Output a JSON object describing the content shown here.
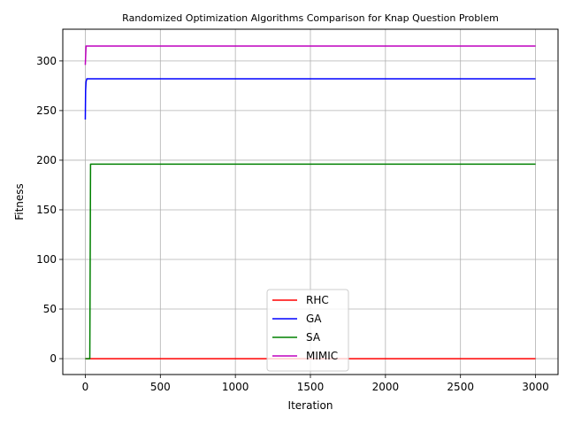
{
  "chart_data": {
    "type": "line",
    "title": "Randomized Optimization Algorithms Comparison for Knap Question Problem",
    "xlabel": "Iteration",
    "ylabel": "Fitness",
    "xlim": [
      -150,
      3150
    ],
    "ylim": [
      -16,
      332
    ],
    "xticks": [
      0,
      500,
      1000,
      1500,
      2000,
      2500,
      3000
    ],
    "yticks": [
      0,
      50,
      100,
      150,
      200,
      250,
      300
    ],
    "grid": true,
    "legend_position": "lower-center",
    "series": [
      {
        "name": "RHC",
        "color": "#ff0000",
        "x": [
          0,
          3000
        ],
        "y": [
          0,
          0
        ]
      },
      {
        "name": "GA",
        "color": "#0000ff",
        "x": [
          0,
          2,
          5,
          10,
          3000
        ],
        "y": [
          241,
          270,
          279,
          282,
          282
        ]
      },
      {
        "name": "SA",
        "color": "#008000",
        "x": [
          0,
          30,
          35,
          3000
        ],
        "y": [
          0,
          0,
          196,
          196
        ]
      },
      {
        "name": "MIMIC",
        "color": "#bf00bf",
        "x": [
          0,
          5,
          3000
        ],
        "y": [
          296,
          315,
          315
        ]
      }
    ]
  }
}
